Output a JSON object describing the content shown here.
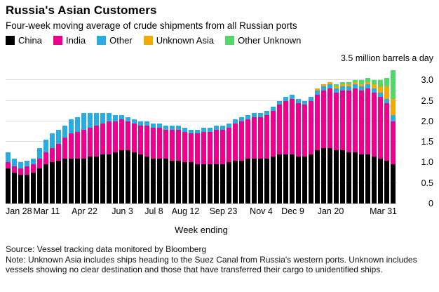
{
  "header": {
    "title": "Russia's Asian Customers",
    "subtitle": "Four-week moving average of crude shipments from all Russian ports"
  },
  "legend": [
    {
      "label": "China",
      "color": "#000000"
    },
    {
      "label": "India",
      "color": "#ec008c"
    },
    {
      "label": "Other",
      "color": "#2aabe2"
    },
    {
      "label": "Unknown Asia",
      "color": "#f2a900"
    },
    {
      "label": "Other Unknown",
      "color": "#52d869"
    }
  ],
  "axis_note": "3.5 million barrels a day",
  "chart_data": {
    "type": "bar",
    "stacked": true,
    "title": "Russia's Asian Customers",
    "subtitle": "Four-week moving average of crude shipments from all Russian ports",
    "xlabel": "Week ending",
    "ylabel": "million barrels a day",
    "ylim": [
      0,
      3.5
    ],
    "grid": true,
    "legend_position": "top",
    "yticks": [
      0,
      0.5,
      1.0,
      1.5,
      2.0,
      2.5,
      3.0
    ],
    "ytick_labels": [
      "0",
      "0.5",
      "1.0",
      "1.5",
      "2.0",
      "2.5",
      "3.0"
    ],
    "x_tick_indices": [
      0,
      6,
      12,
      18,
      23,
      28,
      34,
      40,
      45,
      51,
      61
    ],
    "x_tick_labels": [
      "Jan 28",
      "Mar 11",
      "Apr 22",
      "Jun 3",
      "Jul 8",
      "Aug 12",
      "Sep 23",
      "Nov 4",
      "Dec 9",
      "Jan 20",
      "Mar 31"
    ],
    "series": [
      {
        "name": "China",
        "color": "#000000",
        "values": [
          0.85,
          0.75,
          0.7,
          0.7,
          0.75,
          0.85,
          0.95,
          1.0,
          1.05,
          1.1,
          1.1,
          1.1,
          1.1,
          1.15,
          1.15,
          1.2,
          1.2,
          1.25,
          1.3,
          1.3,
          1.25,
          1.2,
          1.15,
          1.1,
          1.1,
          1.1,
          1.05,
          1.05,
          1.0,
          1.0,
          0.95,
          0.95,
          0.95,
          0.95,
          0.95,
          1.0,
          1.05,
          1.05,
          1.1,
          1.1,
          1.1,
          1.1,
          1.15,
          1.2,
          1.2,
          1.2,
          1.15,
          1.15,
          1.2,
          1.3,
          1.35,
          1.35,
          1.3,
          1.3,
          1.25,
          1.25,
          1.2,
          1.2,
          1.15,
          1.1,
          1.05,
          0.95
        ]
      },
      {
        "name": "India",
        "color": "#ec008c",
        "values": [
          0.15,
          0.15,
          0.15,
          0.2,
          0.2,
          0.25,
          0.3,
          0.35,
          0.4,
          0.5,
          0.6,
          0.65,
          0.7,
          0.7,
          0.75,
          0.75,
          0.8,
          0.75,
          0.75,
          0.7,
          0.7,
          0.7,
          0.75,
          0.75,
          0.75,
          0.7,
          0.75,
          0.75,
          0.75,
          0.7,
          0.75,
          0.8,
          0.8,
          0.85,
          0.85,
          0.85,
          0.9,
          0.95,
          0.95,
          1.0,
          1.0,
          1.05,
          1.1,
          1.2,
          1.3,
          1.35,
          1.3,
          1.25,
          1.3,
          1.35,
          1.4,
          1.45,
          1.4,
          1.45,
          1.5,
          1.55,
          1.55,
          1.6,
          1.55,
          1.5,
          1.4,
          1.05
        ]
      },
      {
        "name": "Other",
        "color": "#2aabe2",
        "values": [
          0.25,
          0.2,
          0.15,
          0.15,
          0.15,
          0.25,
          0.3,
          0.35,
          0.35,
          0.3,
          0.35,
          0.35,
          0.4,
          0.35,
          0.3,
          0.25,
          0.2,
          0.15,
          0.1,
          0.1,
          0.1,
          0.1,
          0.1,
          0.1,
          0.1,
          0.1,
          0.1,
          0.1,
          0.1,
          0.1,
          0.1,
          0.1,
          0.1,
          0.1,
          0.1,
          0.1,
          0.1,
          0.1,
          0.1,
          0.1,
          0.1,
          0.1,
          0.1,
          0.1,
          0.1,
          0.1,
          0.1,
          0.1,
          0.1,
          0.1,
          0.1,
          0.1,
          0.1,
          0.1,
          0.1,
          0.1,
          0.1,
          0.1,
          0.1,
          0.1,
          0.1,
          0.15
        ]
      },
      {
        "name": "Unknown Asia",
        "color": "#f2a900",
        "values": [
          0,
          0,
          0,
          0,
          0,
          0,
          0,
          0,
          0,
          0,
          0,
          0,
          0,
          0,
          0,
          0,
          0,
          0,
          0,
          0,
          0,
          0,
          0,
          0,
          0,
          0,
          0,
          0,
          0,
          0,
          0,
          0,
          0,
          0,
          0,
          0,
          0,
          0,
          0,
          0,
          0,
          0,
          0,
          0,
          0,
          0,
          0,
          0,
          0,
          0.05,
          0.05,
          0.05,
          0.05,
          0.05,
          0.05,
          0.05,
          0.05,
          0.05,
          0.1,
          0.15,
          0.3,
          0.4
        ]
      },
      {
        "name": "Other Unknown",
        "color": "#52d869",
        "values": [
          0,
          0,
          0,
          0,
          0,
          0,
          0,
          0,
          0,
          0,
          0,
          0,
          0,
          0,
          0,
          0,
          0,
          0,
          0,
          0,
          0,
          0,
          0,
          0,
          0,
          0,
          0,
          0,
          0,
          0,
          0,
          0,
          0,
          0,
          0,
          0,
          0,
          0,
          0,
          0,
          0,
          0,
          0,
          0,
          0,
          0,
          0,
          0,
          0,
          0,
          0,
          0,
          0.05,
          0.05,
          0.05,
          0.05,
          0.1,
          0.1,
          0.1,
          0.15,
          0.2,
          0.7
        ]
      }
    ]
  },
  "footer": {
    "source": "Source: Vessel tracking data monitored by Bloomberg",
    "note": "Note: Unknown Asia includes ships heading to the Suez Canal from Russia's western ports. Unknown includes vessels showing no clear destination and those that have transferred their cargo to unidentified ships."
  }
}
